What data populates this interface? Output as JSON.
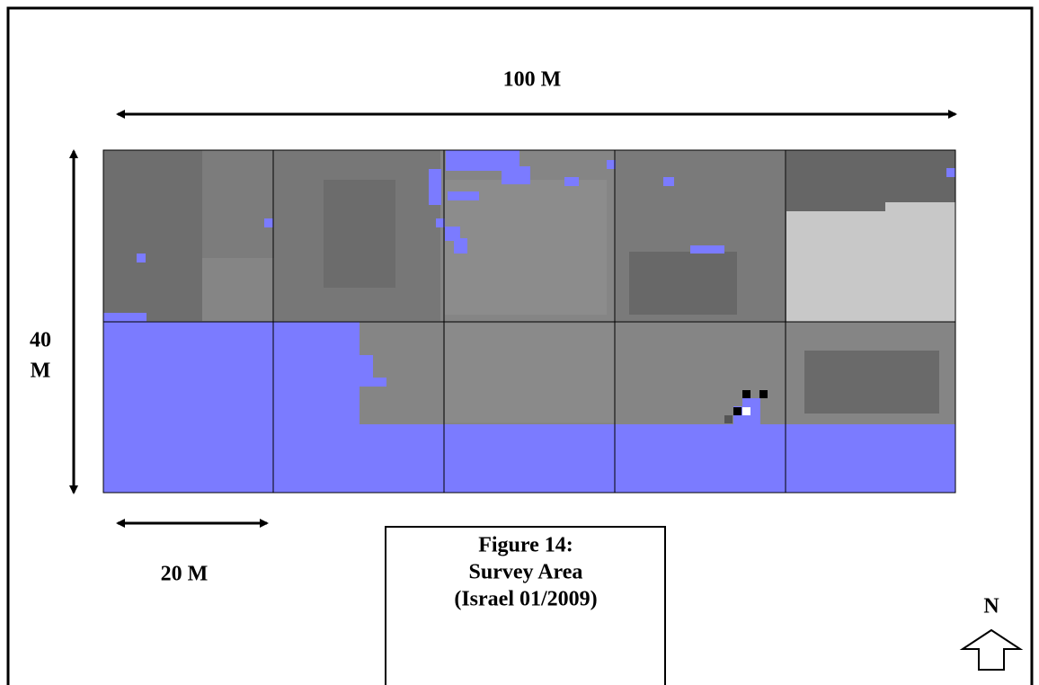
{
  "labels": {
    "width": "100 M",
    "height": [
      "40",
      "M"
    ],
    "scale": "20 M",
    "north": "N"
  },
  "caption": [
    "Figure 14:",
    "Survey Area",
    "(Israel 01/2009)"
  ]
}
